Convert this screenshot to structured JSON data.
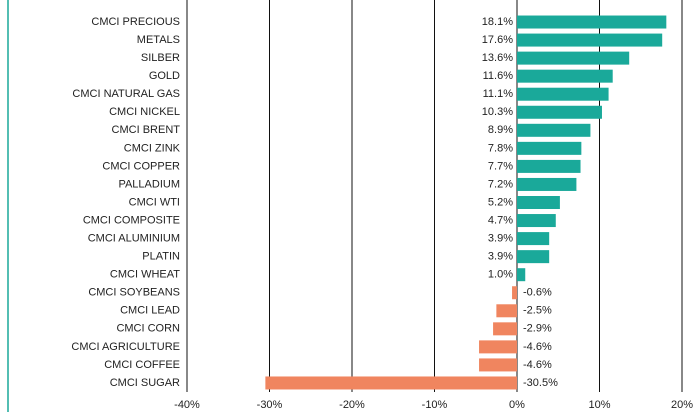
{
  "chart_data": {
    "type": "bar",
    "categories": [
      "CMCI PRECIOUS",
      "METALS",
      "SILBER",
      "GOLD",
      "CMCI NATURAL GAS",
      "CMCI NICKEL",
      "CMCI BRENT",
      "CMCI ZINK",
      "CMCI COPPER",
      "PALLADIUM",
      "CMCI WTI",
      "CMCI COMPOSITE",
      "CMCI ALUMINIUM",
      "PLATIN",
      "CMCI WHEAT",
      "CMCI SOYBEANS",
      "CMCI LEAD",
      "CMCI CORN",
      "CMCI AGRICULTURE",
      "CMCI COFFEE",
      "CMCI SUGAR"
    ],
    "values": [
      18.1,
      17.6,
      13.6,
      11.6,
      11.1,
      10.3,
      8.9,
      7.8,
      7.7,
      7.2,
      5.2,
      4.7,
      3.9,
      3.9,
      1.0,
      -0.6,
      -2.5,
      -2.9,
      -4.6,
      -4.6,
      -30.5
    ],
    "value_labels": [
      "18.1%",
      "17.6%",
      "13.6%",
      "11.6%",
      "11.1%",
      "10.3%",
      "8.9%",
      "7.8%",
      "7.7%",
      "7.2%",
      "5.2%",
      "4.7%",
      "3.9%",
      "3.9%",
      "1.0%",
      "-0.6%",
      "-2.5%",
      "-2.9%",
      "-4.6%",
      "-4.6%",
      "-30.5%"
    ],
    "positive_color": "#1aa99a",
    "negative_color": "#f0855f",
    "xlim": [
      -40,
      20
    ],
    "xticks": [
      {
        "value": -40,
        "label": "-40%"
      },
      {
        "value": -30,
        "label": "-30%"
      },
      {
        "value": -20,
        "label": "-20%"
      },
      {
        "value": -10,
        "label": "-10%"
      },
      {
        "value": 0,
        "label": "0%"
      },
      {
        "value": 10,
        "label": "10%"
      },
      {
        "value": 20,
        "label": "20%"
      }
    ],
    "grid": true
  }
}
